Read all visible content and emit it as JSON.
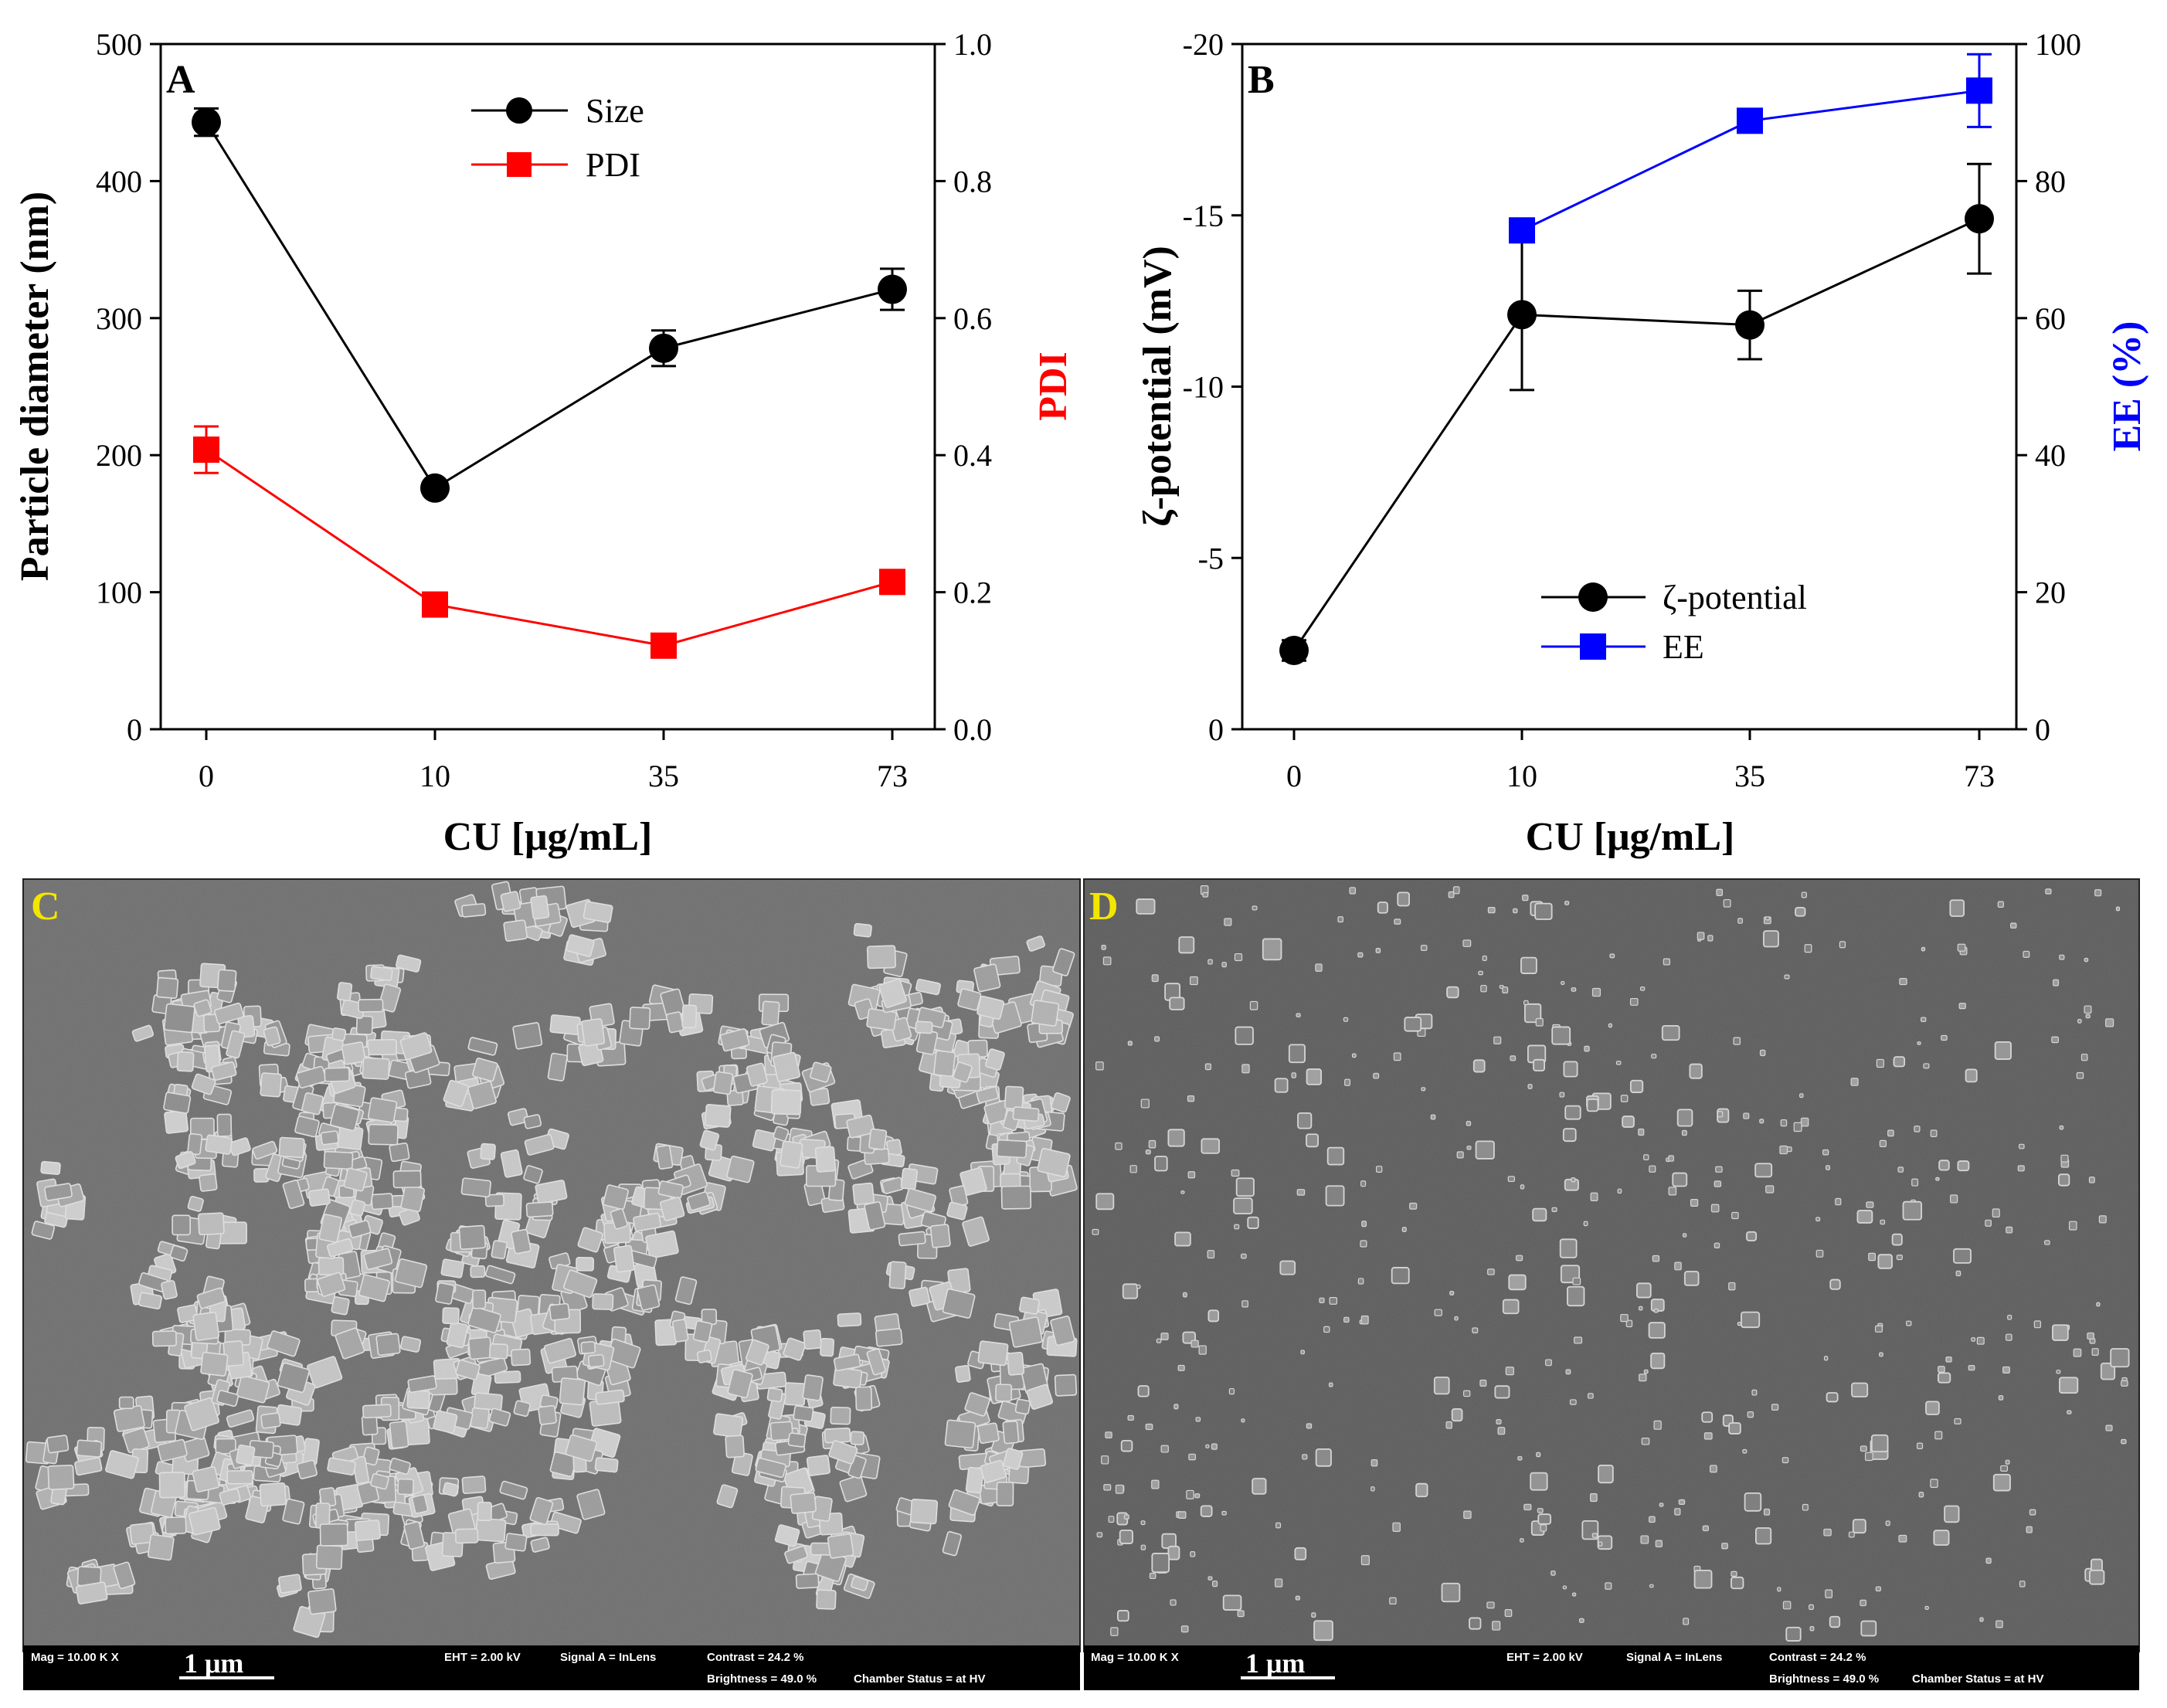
{
  "chart_data": [
    {
      "panel": "A",
      "type": "line",
      "categories": [
        "0",
        "10",
        "35",
        "73"
      ],
      "xlabel": "CU [μg/mL]",
      "ylabel": "Particle diameter (nm)",
      "ylim": [
        0,
        500
      ],
      "yticks": [
        0,
        100,
        200,
        300,
        400,
        500
      ],
      "y2label": "PDI",
      "y2lim": [
        0.0,
        1.0
      ],
      "y2ticks": [
        "0.0",
        "0.2",
        "0.4",
        "0.6",
        "0.8",
        "1.0"
      ],
      "legend_position": "top-center",
      "series": [
        {
          "name": "Size",
          "axis": "left",
          "marker": "circle",
          "color": "#000000",
          "values": [
            443,
            176,
            278,
            321
          ],
          "errors": [
            10,
            5,
            13,
            15
          ]
        },
        {
          "name": "PDI",
          "axis": "right",
          "marker": "square",
          "color": "#ff0000",
          "values": [
            0.408,
            0.182,
            0.122,
            0.215
          ],
          "errors": [
            0.034,
            0.012,
            0.01,
            0.012
          ]
        }
      ]
    },
    {
      "panel": "B",
      "type": "line",
      "categories": [
        "0",
        "10",
        "35",
        "73"
      ],
      "xlabel": "CU [μg/mL]",
      "ylabel": "ζ-potential (mV)",
      "ylim": [
        0,
        -20
      ],
      "yticks": [
        "0",
        "-5",
        "-10",
        "-15",
        "-20"
      ],
      "y2label": "EE (%)",
      "y2lim": [
        0,
        100
      ],
      "y2ticks": [
        "0",
        "20",
        "40",
        "60",
        "80",
        "100"
      ],
      "legend_position": "bottom-center",
      "series": [
        {
          "name": "ζ-potential",
          "axis": "left",
          "marker": "circle",
          "color": "#000000",
          "values": [
            -2.3,
            -12.1,
            -11.8,
            -14.9
          ],
          "errors": [
            0.3,
            2.2,
            1.0,
            1.6
          ]
        },
        {
          "name": "EE",
          "axis": "right",
          "marker": "square",
          "color": "#0000ff",
          "values": [
            null,
            72.8,
            88.8,
            93.2
          ],
          "errors": [
            null,
            1.5,
            1.5,
            5.3
          ]
        }
      ]
    }
  ],
  "panels": {
    "a_letter": "A",
    "b_letter": "B",
    "c_letter": "C",
    "d_letter": "D"
  },
  "sem": {
    "mag": "Mag =  10.00 K X",
    "scale": "1 μm",
    "eht": "EHT =  2.00 kV",
    "signal": "Signal A = InLens",
    "contrast": "Contrast = 24.2 %",
    "brightness": "Brightness = 49.0 %",
    "chamber": "Chamber Status = at HV"
  },
  "colors": {
    "size": "#000000",
    "pdi": "#ff0000",
    "zeta": "#000000",
    "ee": "#0000ff",
    "sem_letter": "#f2e600"
  }
}
